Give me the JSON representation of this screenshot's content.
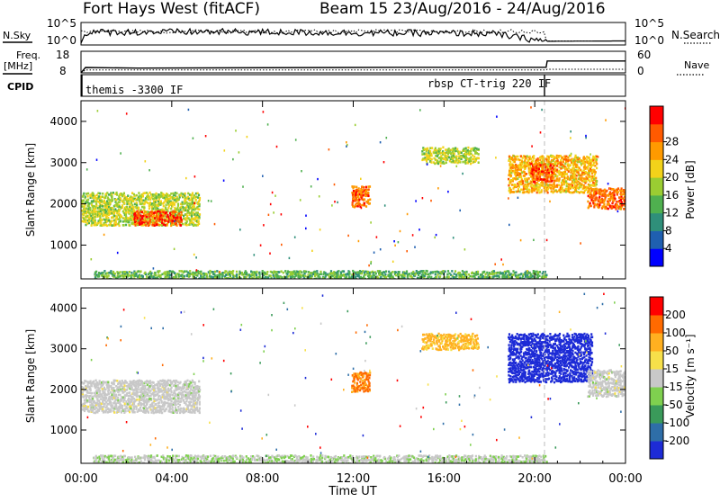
{
  "header": {
    "station_title": "Fort Hays West (fitACF)",
    "beam_title": "Beam 15 23/Aug/2016 - 24/Aug/2016"
  },
  "top_panels": {
    "nsky_label": "N.Sky",
    "nsearch_label": "N.Search",
    "freq_label": "Freq.",
    "freq_unit": "[MHz]",
    "nave_label": "Nave",
    "cpid_label": "CPID",
    "noise_ticks_left": [
      "10^5",
      "10^0"
    ],
    "noise_ticks_right": [
      "10^5",
      "10^0"
    ],
    "freq_ticks_left": [
      "18",
      "8"
    ],
    "freq_ticks_right": [
      "60",
      "0"
    ],
    "cpid_mode_1": "themis -3300 IF",
    "cpid_mode_2": "rbsp CT-trig 220 IF"
  },
  "axes": {
    "xlabel": "Time UT",
    "ylabel": "Slant Range [km]",
    "x_ticks": [
      "00:00",
      "04:00",
      "08:00",
      "12:00",
      "16:00",
      "20:00",
      "00:00"
    ],
    "y_ticks": [
      "1000",
      "2000",
      "3000",
      "4000"
    ]
  },
  "colorbars": {
    "power_label": "Power [dB]",
    "power_ticks": [
      "4",
      "8",
      "12",
      "16",
      "20",
      "24",
      "28"
    ],
    "velocity_label": "Velocity [m s⁻¹]",
    "velocity_ticks": [
      "200",
      "100",
      "50",
      "15",
      "-15",
      "-50",
      "-100",
      "-200"
    ],
    "power_colors": [
      "#0000ff",
      "#1f5fb0",
      "#2f8f7a",
      "#4fb04f",
      "#9acd32",
      "#f2d21a",
      "#ff9a00",
      "#ff5a00",
      "#ff0000"
    ],
    "velocity_colors": [
      "#1d2bd6",
      "#2e6ea8",
      "#3a9a5a",
      "#7fd04f",
      "#c8c8c8",
      "#f7e04a",
      "#ffb020",
      "#ff6a00",
      "#ff0000"
    ]
  },
  "chart_data": [
    {
      "type": "heatmap",
      "title": "Power",
      "x_unit": "hours UT since 23/Aug/2016 00:00",
      "xlim": [
        0,
        24
      ],
      "ylim": [
        180,
        4500
      ],
      "colorbar_range_dB": [
        0,
        30
      ],
      "echo_regions": [
        {
          "x_range": [
            0.0,
            5.2
          ],
          "y_range": [
            1500,
            2300
          ],
          "typical_value": 16
        },
        {
          "x_range": [
            2.3,
            4.4
          ],
          "y_range": [
            1500,
            1850
          ],
          "typical_value": 26
        },
        {
          "x_range": [
            11.9,
            12.7
          ],
          "y_range": [
            1950,
            2450
          ],
          "typical_value": 24
        },
        {
          "x_range": [
            15.0,
            17.5
          ],
          "y_range": [
            3000,
            3400
          ],
          "typical_value": 16
        },
        {
          "x_range": [
            18.8,
            22.7
          ],
          "y_range": [
            2300,
            3200
          ],
          "typical_value": 20
        },
        {
          "x_range": [
            19.8,
            20.8
          ],
          "y_range": [
            2550,
            3000
          ],
          "typical_value": 26
        },
        {
          "x_range": [
            22.3,
            24.0
          ],
          "y_range": [
            1900,
            2400
          ],
          "typical_value": 24
        },
        {
          "x_range": [
            0.5,
            20.5
          ],
          "y_range": [
            180,
            400
          ],
          "typical_value": 12
        }
      ]
    },
    {
      "type": "heatmap",
      "title": "Velocity",
      "x_unit": "hours UT since 23/Aug/2016 00:00",
      "xlim": [
        0,
        24
      ],
      "ylim": [
        180,
        4500
      ],
      "colorbar_range_ms": [
        -250,
        250
      ],
      "echo_regions": [
        {
          "x_range": [
            0.0,
            5.2
          ],
          "y_range": [
            1450,
            2250
          ],
          "typical_value": 0
        },
        {
          "x_range": [
            11.9,
            12.7
          ],
          "y_range": [
            1950,
            2450
          ],
          "typical_value": 150
        },
        {
          "x_range": [
            15.0,
            17.5
          ],
          "y_range": [
            3000,
            3400
          ],
          "typical_value": 100
        },
        {
          "x_range": [
            18.8,
            22.5
          ],
          "y_range": [
            2200,
            3400
          ],
          "typical_value": -250
        },
        {
          "x_range": [
            22.3,
            24.0
          ],
          "y_range": [
            1850,
            2500
          ],
          "typical_value": 0
        },
        {
          "x_range": [
            0.5,
            20.5
          ],
          "y_range": [
            180,
            400
          ],
          "typical_value": -20
        }
      ]
    },
    {
      "type": "line",
      "title": "Noise",
      "x": [
        0,
        0.2,
        0.4,
        6,
        12,
        18,
        20.5,
        24
      ],
      "series": [
        {
          "values": [
            0,
            0.55,
            0.58,
            0.6,
            0.55,
            0.52,
            0.1,
            0.12
          ]
        }
      ]
    },
    {
      "type": "line",
      "title": "Frequency and Nave",
      "x": [
        0,
        0.2,
        2.5,
        14,
        20.5,
        20.55,
        24
      ],
      "series": [
        {
          "values": [
            8,
            10.5,
            10.2,
            10.6,
            10.6,
            13.5,
            13.5
          ]
        },
        {
          "values": [
            0,
            8,
            8,
            8,
            8,
            10,
            10
          ]
        }
      ]
    }
  ]
}
